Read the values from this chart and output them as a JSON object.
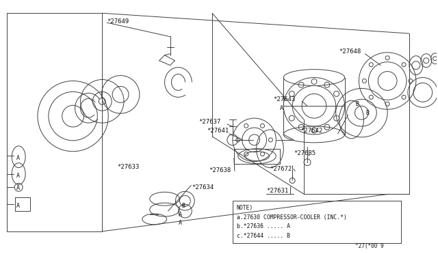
{
  "bg_color": "#ffffff",
  "line_color": "#404040",
  "text_color": "#111111",
  "fig_width": 6.4,
  "fig_height": 3.72,
  "dpi": 100,
  "note_lines": [
    "NOTE)",
    "a.27630 COMPRESSOR-COOLER (INC.*)",
    "b.*27636 ..... A",
    "c.*27644 ..... B"
  ],
  "diagram_code_ref": "^27(*00 9"
}
